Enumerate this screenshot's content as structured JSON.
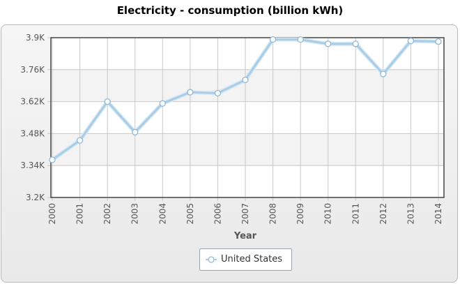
{
  "chart_data": {
    "type": "line",
    "title": "Electricity - consumption (billion kWh)",
    "xlabel": "Year",
    "ylabel": "",
    "categories": [
      "2000",
      "2001",
      "2002",
      "2003",
      "2004",
      "2005",
      "2006",
      "2007",
      "2008",
      "2009",
      "2010",
      "2011",
      "2012",
      "2013",
      "2014"
    ],
    "y_ticks": [
      3200,
      3340,
      3480,
      3620,
      3760,
      3900
    ],
    "y_tick_labels": [
      "3.2K",
      "3.34K",
      "3.48K",
      "3.62K",
      "3.76K",
      "3.9K"
    ],
    "ylim": [
      3200,
      3900
    ],
    "series": [
      {
        "name": "United States",
        "values": [
          3365,
          3450,
          3620,
          3486,
          3612,
          3661,
          3657,
          3715,
          3892,
          3892,
          3873,
          3873,
          3741,
          3886,
          3883
        ]
      }
    ],
    "grid": true,
    "legend_position": "bottom-center",
    "colors": {
      "line": "#a8cde6",
      "marker_fill": "#ffffff",
      "marker_stroke": "#8fb9d8",
      "axis": "#555555",
      "grid": "#c8c8c8"
    }
  }
}
